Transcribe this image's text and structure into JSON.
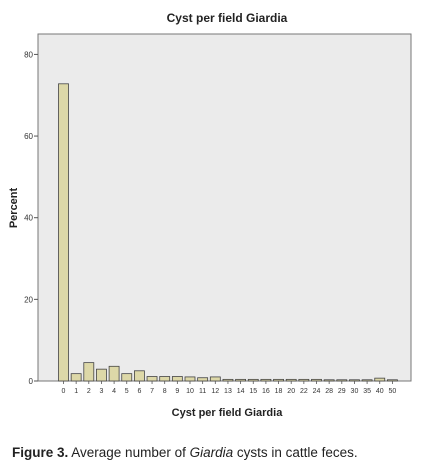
{
  "chart_data": {
    "type": "bar",
    "title": "Cyst per field Giardia",
    "xlabel": "Cyst per field Giardia",
    "ylabel": "Percent",
    "ylim": [
      0,
      85
    ],
    "yticks": [
      0,
      20,
      40,
      60,
      80
    ],
    "grid": false,
    "categories": [
      "0",
      "1",
      "2",
      "3",
      "4",
      "5",
      "6",
      "7",
      "8",
      "9",
      "10",
      "11",
      "12",
      "13",
      "14",
      "15",
      "16",
      "18",
      "20",
      "22",
      "24",
      "28",
      "29",
      "30",
      "35",
      "40",
      "50"
    ],
    "values": [
      72.8,
      1.8,
      4.5,
      2.9,
      3.6,
      1.8,
      2.5,
      1.1,
      1.1,
      1.1,
      1.0,
      0.8,
      1.0,
      0.4,
      0.4,
      0.4,
      0.4,
      0.4,
      0.4,
      0.4,
      0.4,
      0.3,
      0.3,
      0.3,
      0.3,
      0.7,
      0.3
    ],
    "colors": {
      "bar_fill": "#ddd8a8",
      "bar_stroke": "#444444",
      "plot_bg": "#ebebeb"
    }
  },
  "caption": {
    "figure_label": "Figure 3.",
    "text_before": " Average number of ",
    "italic": "Giardia",
    "text_after": " cysts in cattle feces."
  }
}
